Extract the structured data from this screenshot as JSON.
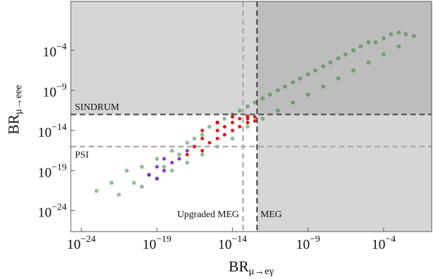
{
  "chart_data": {
    "type": "scatter",
    "log_x": true,
    "log_y": true,
    "xlabel": {
      "text": "BR",
      "subscript": "μ→eγ"
    },
    "ylabel": {
      "text": "BR",
      "subscript": "μ→eee"
    },
    "xlim": [
      2e-25,
      0.15
    ],
    "ylim": [
      2.5e-27,
      125
    ],
    "xticks": [
      {
        "value": 1e-24,
        "label": "10−24"
      },
      {
        "value": 1e-19,
        "label": "10−19"
      },
      {
        "value": 1e-14,
        "label": "10−14"
      },
      {
        "value": 1e-09,
        "label": "10−9"
      },
      {
        "value": 0.0001,
        "label": "10−4"
      }
    ],
    "yticks": [
      {
        "value": 1e-24,
        "label": "10−24"
      },
      {
        "value": 1e-19,
        "label": "10−19"
      },
      {
        "value": 1e-14,
        "label": "10−14"
      },
      {
        "value": 1e-09,
        "label": "10−9"
      },
      {
        "value": 0.0001,
        "label": "10−4"
      }
    ],
    "limits": [
      {
        "label": "SINDRUM",
        "axis": "y",
        "value": 1e-12,
        "color": "#4a4a4a"
      },
      {
        "label": "PSI",
        "axis": "y",
        "value": 1e-16,
        "color": "#a8a8a8"
      },
      {
        "label": "MEG",
        "axis": "x",
        "value": 4.2e-13,
        "color": "#4a4a4a"
      },
      {
        "label": "Upgraded MEG",
        "axis": "x",
        "value": 5e-14,
        "color": "#a8a8a8"
      }
    ],
    "series": [
      {
        "color": "#1f6e1f",
        "x": [
          1e-23,
          1e-22,
          3e-22,
          1e-21,
          3e-21,
          1e-20,
          1e-20,
          3e-20,
          1e-19,
          1e-19,
          3e-19,
          1e-18,
          1e-18,
          3e-18,
          1e-17,
          1e-17,
          3e-17,
          1e-16,
          1e-16,
          3e-16,
          1e-15,
          1e-15,
          3e-15,
          1e-14,
          1e-14,
          3e-14,
          1e-13,
          1e-13,
          3e-13,
          1e-12,
          1e-12,
          3e-12,
          1e-11,
          1e-11,
          3e-11,
          1e-10,
          1e-10,
          3e-10,
          1e-09,
          1e-09,
          3e-09,
          1e-08,
          1e-08,
          3e-08,
          1e-07,
          1e-07,
          3e-07,
          1e-06,
          1e-06,
          3e-06,
          1e-05,
          1e-05,
          3e-05,
          0.0001,
          0.0001,
          0.0003,
          0.001,
          0.001,
          0.003,
          0.01
        ],
        "values": [
          3e-22,
          3e-21,
          1e-22,
          1e-19,
          3e-21,
          3e-19,
          1e-21,
          3e-20,
          3e-18,
          1e-20,
          3e-19,
          3e-17,
          1e-19,
          1e-17,
          3e-16,
          1e-18,
          1e-15,
          3e-15,
          1e-17,
          3e-14,
          1e-13,
          1e-16,
          3e-13,
          1e-12,
          1e-15,
          3e-12,
          1e-11,
          3e-14,
          3e-11,
          1e-10,
          3e-13,
          3e-10,
          1e-09,
          3e-12,
          3e-09,
          1e-08,
          3e-11,
          3e-08,
          1e-07,
          3e-10,
          3e-07,
          1e-06,
          3e-09,
          3e-06,
          1e-05,
          3e-08,
          3e-05,
          0.0001,
          3e-07,
          0.0003,
          0.001,
          3e-06,
          0.001,
          0.003,
          3e-05,
          0.01,
          0.016,
          0.0003,
          0.01,
          0.006
        ]
      },
      {
        "color": "#e00000",
        "x": [
          1e-17,
          3e-17,
          1e-16,
          1e-16,
          3e-16,
          1e-15,
          1e-15,
          3e-15,
          3e-15,
          1e-14,
          1e-14,
          3e-14,
          3e-14,
          1e-13,
          1e-13,
          3e-13,
          3e-13,
          1e-14,
          1e-15,
          1e-16,
          1e-13
        ],
        "values": [
          1e-17,
          1e-16,
          3e-17,
          1e-15,
          3e-16,
          1e-14,
          1e-15,
          3e-14,
          3e-15,
          1e-13,
          1e-14,
          3e-13,
          3e-14,
          6e-13,
          1e-13,
          5e-13,
          1.6e-13,
          5e-13,
          1e-13,
          1e-14,
          3e-13
        ]
      },
      {
        "color": "#7a1fd6",
        "x": [
          3e-20,
          1e-19,
          3e-19,
          1e-18,
          3e-18,
          1e-17,
          3e-19,
          1e-19
        ],
        "values": [
          3e-20,
          3e-19,
          1e-19,
          1e-18,
          3e-18,
          3e-17,
          3e-18,
          1e-20
        ]
      }
    ]
  }
}
